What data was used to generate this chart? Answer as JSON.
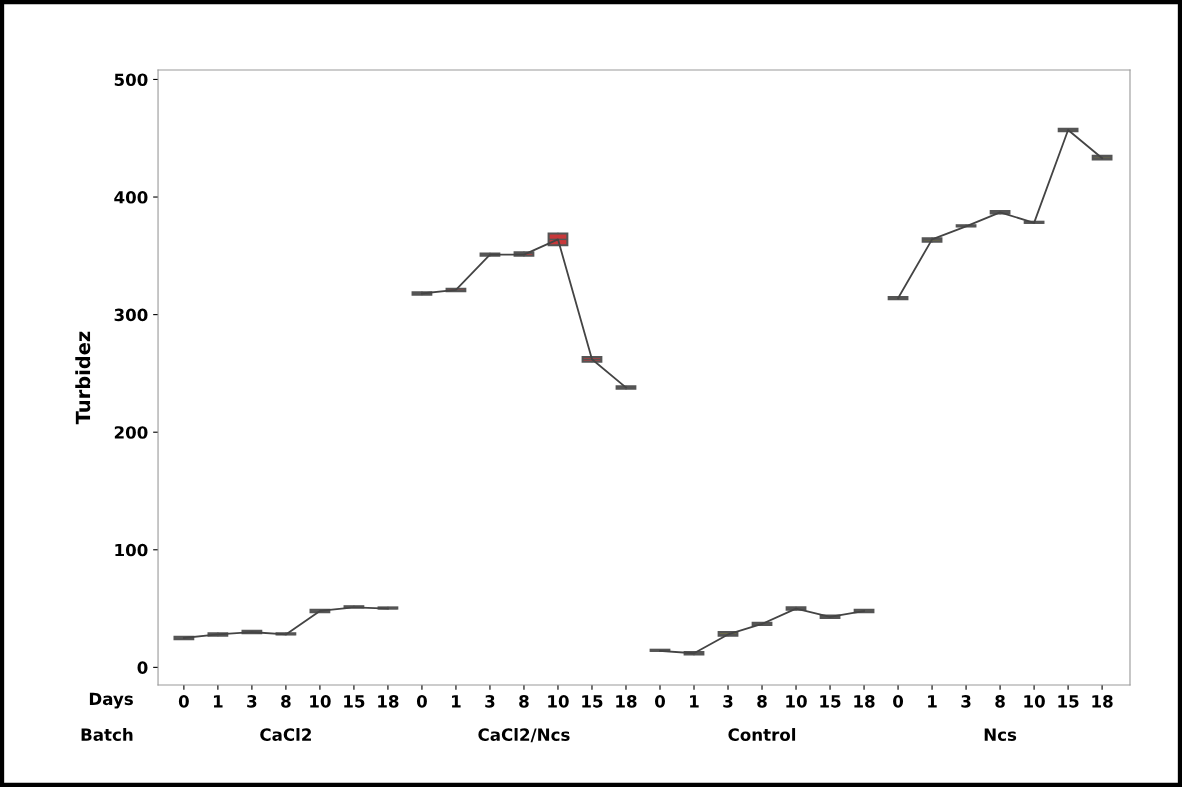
{
  "chart_data": {
    "type": "box",
    "ylabel": "Turbidez",
    "categories": [
      "0",
      "1",
      "3",
      "8",
      "10",
      "15",
      "18",
      "0",
      "1",
      "3",
      "8",
      "10",
      "15",
      "18",
      "0",
      "1",
      "3",
      "8",
      "10",
      "15",
      "18",
      "0",
      "1",
      "3",
      "8",
      "10",
      "15",
      "18"
    ],
    "ylim": [
      -15,
      508
    ],
    "yticks": [
      0,
      100,
      200,
      300,
      400,
      500
    ],
    "grid": false,
    "legend": false,
    "annotations": [
      "Days",
      "Batch",
      "CaCl2",
      "CaCl2/Ncs",
      "Control",
      "Ncs"
    ],
    "colors": [
      "#8a8a8a",
      "#8a8a8a",
      "#8a8a8a",
      "#8a8a8a",
      "#8a8a8a",
      "#8a8a8a",
      "#8a8a8a",
      "#c8383a",
      "#c8383a",
      "#c8383a",
      "#c8383a",
      "#c8383a",
      "#c8383a",
      "#c8383a",
      "#7d7a3e",
      "#7d7a3e",
      "#7d7a3e",
      "#7d7a3e",
      "#7d7a3e",
      "#7d7a3e",
      "#7d7a3e",
      "#6b6a4a",
      "#6b6a4a",
      "#6b6a4a",
      "#6b6a4a",
      "#6b6a4a",
      "#6b6a4a",
      "#6b6a4a"
    ],
    "boxes": [
      {
        "low": 24,
        "q1": 24,
        "median": 25,
        "q3": 26,
        "high": 26
      },
      {
        "low": 27,
        "q1": 27,
        "median": 28,
        "q3": 29,
        "high": 29
      },
      {
        "low": 29,
        "q1": 29,
        "median": 30,
        "q3": 31,
        "high": 31
      },
      {
        "low": 28,
        "q1": 28,
        "median": 28,
        "q3": 29,
        "high": 29
      },
      {
        "low": 47,
        "q1": 47,
        "median": 48,
        "q3": 49,
        "high": 49
      },
      {
        "low": 51,
        "q1": 51,
        "median": 51,
        "q3": 52,
        "high": 52
      },
      {
        "low": 50,
        "q1": 50,
        "median": 50,
        "q3": 51,
        "high": 51
      },
      {
        "low": 317,
        "q1": 317,
        "median": 318,
        "q3": 319,
        "high": 319
      },
      {
        "low": 320,
        "q1": 320,
        "median": 320,
        "q3": 322,
        "high": 322
      },
      {
        "low": 350,
        "q1": 350,
        "median": 351,
        "q3": 352,
        "high": 352
      },
      {
        "low": 350,
        "q1": 350,
        "median": 352,
        "q3": 353,
        "high": 353
      },
      {
        "low": 359,
        "q1": 359,
        "median": 364,
        "q3": 369,
        "high": 369
      },
      {
        "low": 260,
        "q1": 260,
        "median": 262,
        "q3": 264,
        "high": 264
      },
      {
        "low": 237,
        "q1": 237,
        "median": 238,
        "q3": 239,
        "high": 239
      },
      {
        "low": 14,
        "q1": 14,
        "median": 14,
        "q3": 15,
        "high": 15
      },
      {
        "low": 11,
        "q1": 11,
        "median": 12,
        "q3": 13,
        "high": 13
      },
      {
        "low": 27,
        "q1": 27,
        "median": 28,
        "q3": 30,
        "high": 30
      },
      {
        "low": 36,
        "q1": 36,
        "median": 37,
        "q3": 38,
        "high": 38
      },
      {
        "low": 49,
        "q1": 49,
        "median": 50,
        "q3": 51,
        "high": 51
      },
      {
        "low": 42,
        "q1": 42,
        "median": 43,
        "q3": 44,
        "high": 44
      },
      {
        "low": 47,
        "q1": 47,
        "median": 48,
        "q3": 49,
        "high": 49
      },
      {
        "low": 313,
        "q1": 313,
        "median": 314,
        "q3": 315,
        "high": 315
      },
      {
        "low": 362,
        "q1": 362,
        "median": 364,
        "q3": 365,
        "high": 365
      },
      {
        "low": 375,
        "q1": 375,
        "median": 375,
        "q3": 376,
        "high": 376
      },
      {
        "low": 386,
        "q1": 386,
        "median": 387,
        "q3": 388,
        "high": 388
      },
      {
        "low": 378,
        "q1": 378,
        "median": 378,
        "q3": 379,
        "high": 379
      },
      {
        "low": 456,
        "q1": 456,
        "median": 457,
        "q3": 458,
        "high": 458
      },
      {
        "low": 432,
        "q1": 432,
        "median": 433,
        "q3": 435,
        "high": 435
      }
    ],
    "series": [
      {
        "type": "line",
        "color": "#444444",
        "values": [
          25,
          28,
          30,
          28,
          48,
          51,
          50,
          null,
          null,
          null,
          null,
          null,
          null,
          null,
          null,
          null,
          null,
          null,
          null,
          null,
          null,
          null,
          null,
          null,
          null,
          null,
          null,
          null
        ]
      },
      {
        "type": "line",
        "color": "#444444",
        "values": [
          null,
          null,
          null,
          null,
          null,
          null,
          null,
          318,
          321,
          351,
          351,
          364,
          262,
          238,
          null,
          null,
          null,
          null,
          null,
          null,
          null,
          null,
          null,
          null,
          null,
          null,
          null,
          null
        ]
      },
      {
        "type": "line",
        "color": "#444444",
        "values": [
          null,
          null,
          null,
          null,
          null,
          null,
          null,
          null,
          null,
          null,
          null,
          null,
          null,
          null,
          14,
          12,
          28,
          37,
          50,
          43,
          48,
          null,
          null,
          null,
          null,
          null,
          null,
          null
        ]
      },
      {
        "type": "line",
        "color": "#444444",
        "values": [
          null,
          null,
          null,
          null,
          null,
          null,
          null,
          null,
          null,
          null,
          null,
          null,
          null,
          null,
          null,
          null,
          null,
          null,
          null,
          null,
          null,
          314,
          364,
          375,
          387,
          378,
          457,
          433
        ]
      }
    ]
  }
}
